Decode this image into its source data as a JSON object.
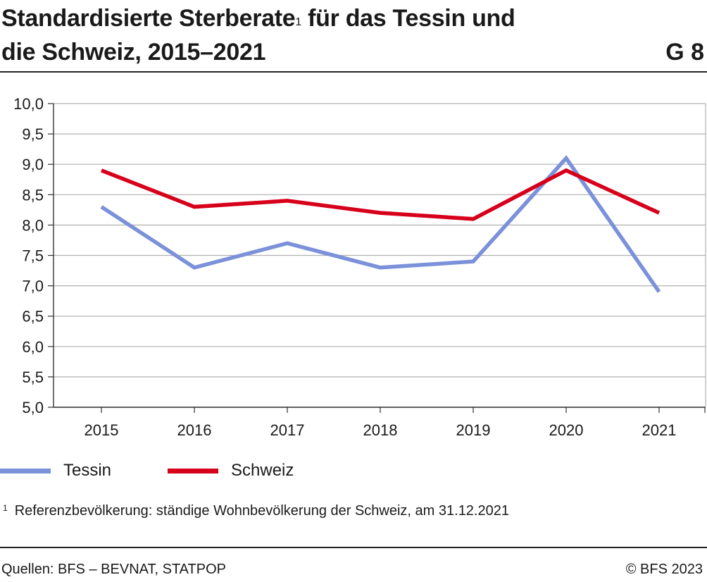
{
  "header": {
    "title_line1_a": "Standardisierte Sterberate",
    "title_sup": "1",
    "title_line1_b": " für das Tessin und",
    "title_line2": "die Schweiz, 2015–2021",
    "figure_number": "G 8"
  },
  "legend": {
    "items": [
      {
        "label": "Tessin",
        "color": "#7b91d9"
      },
      {
        "label": "Schweiz",
        "color": "#d7001b"
      }
    ]
  },
  "footnote": {
    "marker": "1",
    "text": "Referenzbevölkerung: ständige Wohnbevölkerung der Schweiz, am 31.12.2021"
  },
  "footer": {
    "source": "Quellen: BFS – BEVNAT, STATPOP",
    "copyright": "© BFS 2023"
  },
  "chart_data": {
    "type": "line",
    "title": "Standardisierte Sterberate für das Tessin und die Schweiz, 2015–2021",
    "xlabel": "",
    "ylabel": "",
    "categories": [
      "2015",
      "2016",
      "2017",
      "2018",
      "2019",
      "2020",
      "2021"
    ],
    "ylim": [
      5.0,
      10.0
    ],
    "yticks": [
      "5,0",
      "5,5",
      "6,0",
      "6,5",
      "7,0",
      "7,5",
      "8,0",
      "8,5",
      "9,0",
      "9,5",
      "10,0"
    ],
    "grid": true,
    "legend_position": "bottom-left",
    "series": [
      {
        "name": "Tessin",
        "color": "#7b91d9",
        "values": [
          8.3,
          7.3,
          7.7,
          7.3,
          7.4,
          9.1,
          6.9
        ]
      },
      {
        "name": "Schweiz",
        "color": "#d7001b",
        "values": [
          8.9,
          8.3,
          8.4,
          8.2,
          8.1,
          8.9,
          8.2
        ]
      }
    ]
  }
}
